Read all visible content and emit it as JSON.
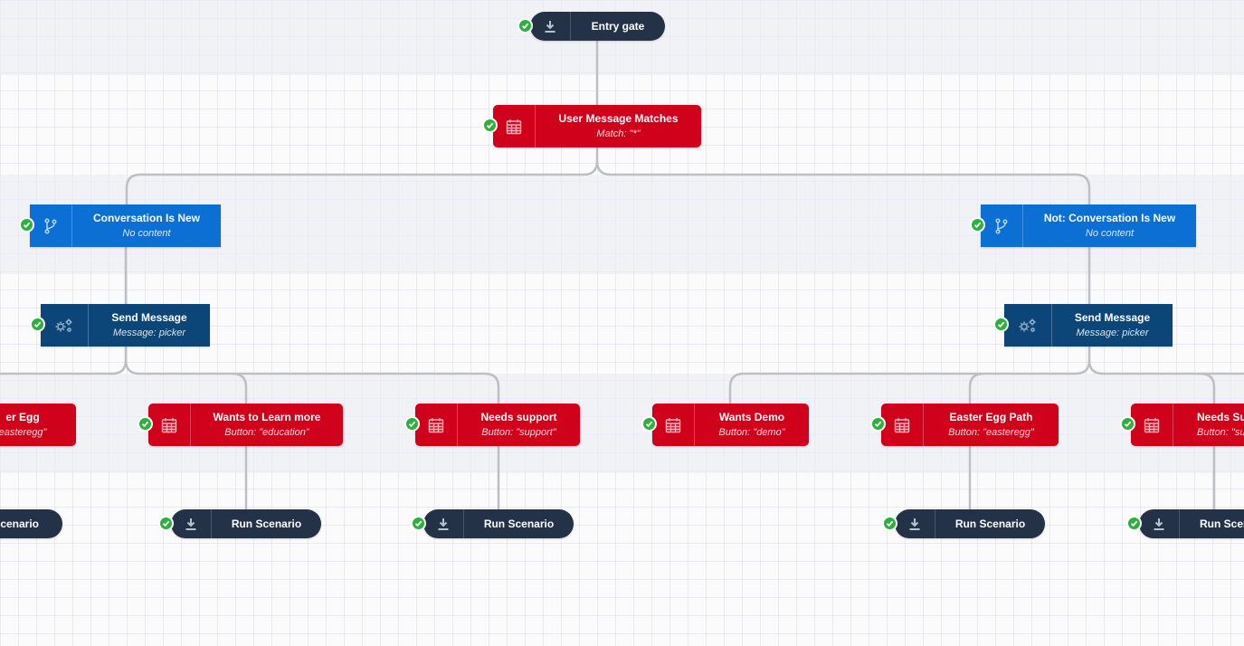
{
  "flow": {
    "entry": {
      "title": "Entry gate"
    },
    "user_match": {
      "title": "User Message Matches",
      "subtitle": "Match: \"*\""
    },
    "conv_new": {
      "title": "Conversation Is New",
      "subtitle": "No content"
    },
    "not_conv_new": {
      "title": "Not: Conversation Is New",
      "subtitle": "No content"
    },
    "send_left": {
      "title": "Send Message",
      "subtitle": "Message: picker"
    },
    "send_right": {
      "title": "Send Message",
      "subtitle": "Message: picker"
    },
    "easter_left": {
      "title": "er Egg",
      "subtitle": "easteregg\""
    },
    "wants_learn": {
      "title": "Wants to Learn more",
      "subtitle": "Button: \"education\""
    },
    "needs_support_left": {
      "title": "Needs support",
      "subtitle": "Button: \"support\""
    },
    "wants_demo": {
      "title": "Wants Demo",
      "subtitle": "Button: \"demo\""
    },
    "easter_path": {
      "title": "Easter Egg Path",
      "subtitle": "Button: \"easteregg\""
    },
    "needs_support_right": {
      "title": "Needs Sup",
      "subtitle": "Button: \"su"
    },
    "run_0": {
      "title": "cenario"
    },
    "run_1": {
      "title": "Run Scenario"
    },
    "run_2": {
      "title": "Run Scenario"
    },
    "run_3": {
      "title": "Run Scenario"
    },
    "run_4": {
      "title": "Run Scen"
    }
  },
  "icons": {
    "entry": "download-icon",
    "match": "calendar-icon",
    "condition": "branch-icon",
    "send": "gears-icon",
    "run": "download-icon",
    "status": "check-icon"
  },
  "colors": {
    "trigger_red": "#d0021b",
    "condition_blue": "#0b6fd3",
    "action_navy": "#0c4577",
    "pill_dark": "#243247",
    "status_green": "#2eb03f",
    "connector": "#bdbfc3"
  }
}
